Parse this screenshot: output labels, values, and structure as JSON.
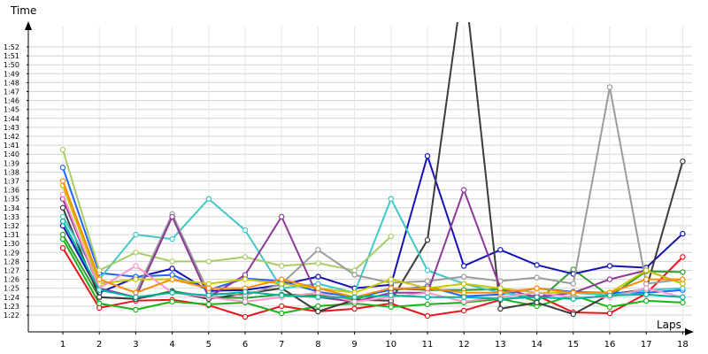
{
  "chart_data": {
    "type": "line",
    "ylabel": "Time",
    "xlabel": "Laps",
    "grid": true,
    "x": [
      1,
      2,
      3,
      4,
      5,
      6,
      7,
      8,
      9,
      10,
      11,
      12,
      13,
      14,
      15,
      16,
      17,
      18
    ],
    "x_tick_labels": [
      "1",
      "2",
      "3",
      "4",
      "5",
      "6",
      "7",
      "8",
      "9",
      "10",
      "11",
      "12",
      "13",
      "14",
      "15",
      "16",
      "17",
      "18"
    ],
    "y_tick_labels": [
      "1:22",
      "1:23",
      "1:24",
      "1:25",
      "1:26",
      "1:27",
      "1:28",
      "1:29",
      "1:30",
      "1:31",
      "1:32",
      "1:33",
      "1:34",
      "1:35",
      "1:36",
      "1:37",
      "1:38",
      "1:39",
      "1:40",
      "1:41",
      "1:42",
      "1:43",
      "1:44",
      "1:45",
      "1:46",
      "1:47",
      "1:48",
      "1:49",
      "1:50",
      "1:51",
      "1:52"
    ],
    "y_tick_seconds": [
      82,
      83,
      84,
      85,
      86,
      87,
      88,
      89,
      90,
      91,
      92,
      93,
      94,
      95,
      96,
      97,
      98,
      99,
      100,
      101,
      102,
      103,
      104,
      105,
      106,
      107,
      108,
      109,
      110,
      111,
      112
    ],
    "ylim_seconds": [
      80.5,
      114
    ],
    "series": [
      {
        "color": "#e8141b",
        "values": [
          89.5,
          82.8,
          83.6,
          83.7,
          83.1,
          81.8,
          83.0,
          82.4,
          82.7,
          83.3,
          81.9,
          82.5,
          83.7,
          84.2,
          82.3,
          82.2,
          84.4,
          88.5
        ]
      },
      {
        "color": "#1ab31a",
        "values": [
          90.5,
          83.3,
          82.6,
          83.5,
          83.2,
          83.4,
          82.2,
          83.0,
          83.3,
          82.9,
          83.2,
          83.4,
          83.8,
          83.0,
          84.2,
          82.9,
          83.6,
          83.4
        ]
      },
      {
        "color": "#2e9b2e",
        "values": [
          91.0,
          84.0,
          83.8,
          84.7,
          84.0,
          83.9,
          84.3,
          84.2,
          83.7,
          85.0,
          84.8,
          84.8,
          84.9,
          83.5,
          87.1,
          84.1,
          86.9,
          86.8
        ]
      },
      {
        "color": "#1414b4",
        "values": [
          92.0,
          84.5,
          86.2,
          87.2,
          84.7,
          84.8,
          85.4,
          86.3,
          85.0,
          85.4,
          99.8,
          87.5,
          89.3,
          87.6,
          86.6,
          87.5,
          87.3,
          91.1
        ]
      },
      {
        "color": "#3c3c3c",
        "values": [
          94.0,
          84.0,
          83.8,
          84.6,
          83.8,
          84.4,
          85.0,
          82.4,
          83.7,
          83.6,
          90.4,
          120,
          82.7,
          83.4,
          82.1,
          84.3,
          84.9,
          99.2
        ]
      },
      {
        "color": "#1e64ff",
        "values": [
          98.5,
          86.7,
          86.3,
          86.5,
          84.8,
          86.1,
          85.8,
          84.6,
          84.0,
          84.8,
          85.2,
          84.1,
          84.3,
          85.0,
          84.6,
          84.5,
          84.5,
          84.8
        ]
      },
      {
        "color": "#40c8c8",
        "values": [
          93.0,
          86.0,
          91.0,
          90.5,
          95.0,
          91.5,
          85.0,
          85.5,
          84.5,
          95.0,
          87.0,
          85.5,
          84.5,
          84.0,
          84.5,
          84.2,
          84.8,
          85.0
        ]
      },
      {
        "color": "#a9cc66",
        "values": [
          100.5,
          87.0,
          89.0,
          88.0,
          88.0,
          88.5,
          87.5,
          87.8,
          87.0,
          90.8,
          null,
          null,
          null,
          null,
          null,
          null,
          null,
          null
        ]
      },
      {
        "color": "#9c9c9c",
        "values": [
          96.5,
          86.0,
          84.5,
          93.3,
          84.5,
          84.2,
          85.5,
          89.3,
          86.5,
          85.6,
          85.8,
          86.3,
          85.8,
          86.2,
          85.5,
          107.5,
          85.5,
          86.0
        ]
      },
      {
        "color": "#8b3a96",
        "values": [
          95.0,
          85.0,
          84.0,
          93.0,
          84.0,
          86.5,
          93.0,
          84.0,
          83.5,
          84.5,
          84.5,
          96.0,
          85.0,
          84.0,
          84.5,
          86.0,
          87.0,
          85.5
        ]
      },
      {
        "color": "#c8c800",
        "values": [
          96.5,
          85.5,
          86.0,
          86.0,
          85.5,
          86.0,
          85.5,
          85.0,
          84.5,
          86.0,
          85.0,
          85.5,
          85.0,
          84.5,
          84.5,
          84.5,
          87.0,
          85.5
        ]
      },
      {
        "color": "#ff96c8",
        "values": [
          95.5,
          85.0,
          87.5,
          84.5,
          84.0,
          83.5,
          84.0,
          84.5,
          83.5,
          84.0,
          84.5,
          83.5,
          84.0,
          84.5,
          84.0,
          84.0,
          85.0,
          84.0
        ]
      },
      {
        "color": "#ff8c00",
        "values": [
          97.0,
          86.0,
          84.5,
          86.0,
          85.0,
          85.0,
          86.0,
          85.0,
          84.0,
          85.0,
          85.0,
          84.5,
          84.5,
          85.0,
          84.5,
          84.5,
          86.0,
          86.0
        ]
      },
      {
        "color": "#00b4a0",
        "values": [
          92.5,
          84.8,
          84.0,
          84.5,
          84.2,
          84.6,
          84.2,
          84.0,
          84.0,
          84.2,
          84.0,
          84.0,
          83.8,
          84.0,
          83.8,
          84.2,
          84.3,
          84.0
        ]
      }
    ]
  }
}
